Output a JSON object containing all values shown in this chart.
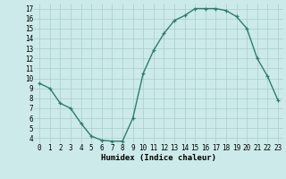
{
  "x": [
    0,
    1,
    2,
    3,
    4,
    5,
    6,
    7,
    8,
    9,
    10,
    11,
    12,
    13,
    14,
    15,
    16,
    17,
    18,
    19,
    20,
    21,
    22,
    23
  ],
  "y": [
    9.5,
    9.0,
    7.5,
    7.0,
    5.5,
    4.2,
    3.8,
    3.7,
    3.7,
    6.0,
    10.5,
    12.8,
    14.5,
    15.8,
    16.3,
    17.0,
    17.0,
    17.0,
    16.8,
    16.2,
    15.0,
    12.0,
    10.2,
    7.8
  ],
  "xlabel": "Humidex (Indice chaleur)",
  "xlim": [
    -0.5,
    23.5
  ],
  "ylim": [
    3.5,
    17.5
  ],
  "yticks": [
    4,
    5,
    6,
    7,
    8,
    9,
    10,
    11,
    12,
    13,
    14,
    15,
    16,
    17
  ],
  "xticks": [
    0,
    1,
    2,
    3,
    4,
    5,
    6,
    7,
    8,
    9,
    10,
    11,
    12,
    13,
    14,
    15,
    16,
    17,
    18,
    19,
    20,
    21,
    22,
    23
  ],
  "line_color": "#2e7d6e",
  "marker_color": "#2e7d6e",
  "bg_color": "#cceaea",
  "grid_color": "#aacccc",
  "label_fontsize": 6.5,
  "tick_fontsize": 5.5
}
